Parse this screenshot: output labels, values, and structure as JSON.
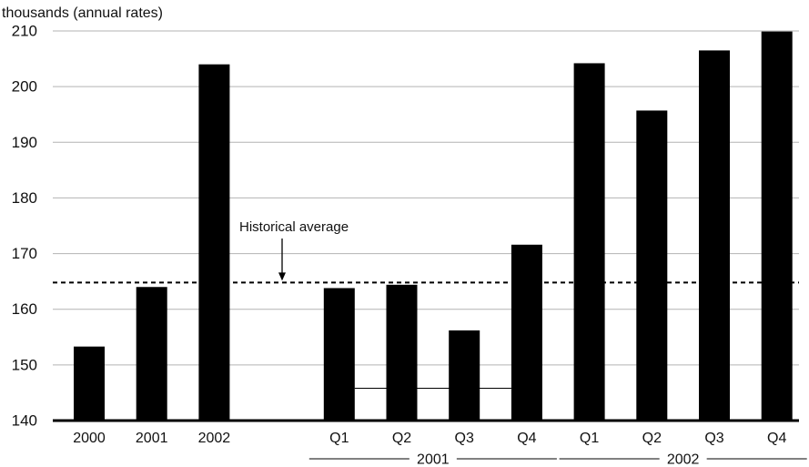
{
  "chart_data": {
    "type": "bar",
    "ylabel": "thousands (annual rates)",
    "ylim": [
      140,
      210
    ],
    "yticks": [
      140,
      150,
      160,
      170,
      180,
      190,
      200,
      210
    ],
    "grid": true,
    "bar_color": "#000000",
    "grid_color": "#b3b3b3",
    "categories": [
      "2000",
      "2001",
      "2002",
      "Q1",
      "Q2",
      "Q3",
      "Q4",
      "Q1",
      "Q2",
      "Q3",
      "Q4"
    ],
    "values": [
      153.3,
      164.0,
      204.0,
      163.8,
      164.4,
      156.2,
      171.6,
      204.2,
      195.7,
      206.5,
      209.9
    ],
    "groups": [
      {
        "label": "2001",
        "members": [
          "Q1",
          "Q2",
          "Q3",
          "Q4"
        ]
      },
      {
        "label": "2002",
        "members": [
          "Q1",
          "Q2",
          "Q3",
          "Q4"
        ]
      }
    ],
    "reference_line": {
      "label": "Historical average",
      "value": 164.8,
      "style": "dashed"
    },
    "inner_line": {
      "value": 145.8,
      "from_bar": "Q1 2001",
      "to_bar": "Q4 2001"
    }
  }
}
